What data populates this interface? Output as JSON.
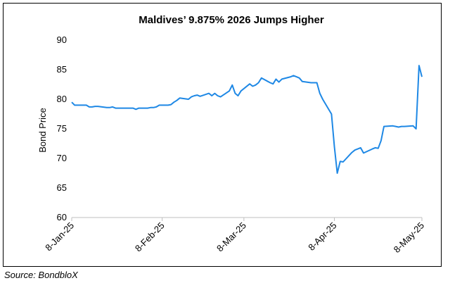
{
  "chart_data": {
    "type": "line",
    "title": "Maldives’ 9.875% 2026 Jumps Higher",
    "ylabel": "Bond Price",
    "xlabel": "",
    "ylim": [
      60,
      90
    ],
    "yticks": [
      60,
      65,
      70,
      75,
      80,
      85,
      90
    ],
    "xticks": [
      "8-Jan-25",
      "8-Feb-25",
      "8-Mar-25",
      "8-Apr-25",
      "8-May-25"
    ],
    "xlim": [
      "2025-01-08",
      "2025-05-08"
    ],
    "grid": false,
    "line_color": "#1e88e5",
    "series": [
      {
        "x": [
          "2025-01-08",
          "2025-01-09",
          "2025-01-10",
          "2025-01-13",
          "2025-01-14",
          "2025-01-15",
          "2025-01-16",
          "2025-01-17",
          "2025-01-20",
          "2025-01-21",
          "2025-01-22",
          "2025-01-23",
          "2025-01-24",
          "2025-01-27",
          "2025-01-28",
          "2025-01-29",
          "2025-01-30",
          "2025-01-31",
          "2025-02-03",
          "2025-02-04",
          "2025-02-05",
          "2025-02-06",
          "2025-02-07",
          "2025-02-10",
          "2025-02-11",
          "2025-02-12",
          "2025-02-13",
          "2025-02-14",
          "2025-02-17",
          "2025-02-18",
          "2025-02-19",
          "2025-02-20",
          "2025-02-21",
          "2025-02-24",
          "2025-02-25",
          "2025-02-26",
          "2025-02-27",
          "2025-02-28",
          "2025-03-03",
          "2025-03-04",
          "2025-03-05",
          "2025-03-06",
          "2025-03-07",
          "2025-03-10",
          "2025-03-11",
          "2025-03-12",
          "2025-03-13",
          "2025-03-14",
          "2025-03-17",
          "2025-03-18",
          "2025-03-19",
          "2025-03-20",
          "2025-03-21",
          "2025-03-24",
          "2025-03-25",
          "2025-03-26",
          "2025-03-27",
          "2025-03-28",
          "2025-03-31",
          "2025-04-01",
          "2025-04-02",
          "2025-04-03",
          "2025-04-04",
          "2025-04-07",
          "2025-04-08",
          "2025-04-09",
          "2025-04-10",
          "2025-04-11",
          "2025-04-14",
          "2025-04-15",
          "2025-04-16",
          "2025-04-17",
          "2025-04-18",
          "2025-04-21",
          "2025-04-22",
          "2025-04-23",
          "2025-04-24",
          "2025-04-25",
          "2025-04-28",
          "2025-04-29",
          "2025-04-30",
          "2025-05-01",
          "2025-05-02",
          "2025-05-05",
          "2025-05-06",
          "2025-05-07",
          "2025-05-08"
        ],
        "values": [
          79.5,
          79.0,
          79.0,
          79.0,
          78.7,
          78.7,
          78.8,
          78.8,
          78.6,
          78.6,
          78.7,
          78.5,
          78.5,
          78.5,
          78.5,
          78.5,
          78.3,
          78.5,
          78.5,
          78.6,
          78.6,
          78.7,
          79.0,
          79.0,
          79.1,
          79.5,
          79.8,
          80.2,
          80.0,
          80.4,
          80.6,
          80.7,
          80.5,
          81.0,
          80.6,
          81.0,
          80.6,
          80.4,
          81.4,
          82.4,
          81.0,
          80.6,
          81.4,
          82.6,
          82.2,
          82.4,
          82.8,
          83.6,
          82.8,
          82.6,
          83.4,
          82.9,
          83.4,
          83.8,
          84.0,
          83.8,
          83.6,
          83.0,
          82.8,
          82.8,
          82.8,
          81.0,
          80.0,
          77.5,
          72.0,
          67.5,
          69.5,
          69.4,
          71.0,
          71.4,
          71.6,
          71.8,
          70.9,
          71.6,
          71.8,
          71.7,
          73.0,
          75.4,
          75.5,
          75.4,
          75.3,
          75.4,
          75.4,
          75.5,
          75.0,
          85.7,
          83.8
        ]
      }
    ]
  },
  "footer": {
    "source": "Source: BondbloX"
  }
}
